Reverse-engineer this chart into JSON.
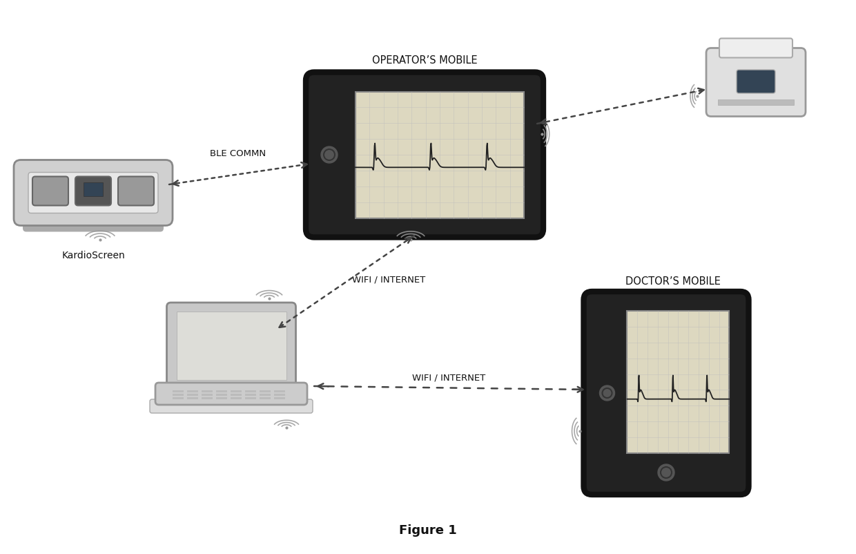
{
  "title": "Figure 1",
  "background_color": "#ffffff",
  "elements": {
    "operator_mobile_label": "OPERATOR’S MOBILE",
    "doctor_mobile_label": "DOCTOR’S MOBILE",
    "kardioscreen_label": "KardioScreen",
    "ble_commn_label": "BLE COMMN",
    "wifi_internet_label1": "WIFI / INTERNET",
    "wifi_internet_label2": "WIFI / INTERNET"
  },
  "colors": {
    "device_outline": "#333333",
    "arrow": "#444444",
    "dashed": "#555555",
    "ecg_line": "#222222",
    "grid_color": "#bbbbbb",
    "screen_bg": "#ddd8c0",
    "phone_body": "#1a1a1a",
    "phone_border": "#111111",
    "text_color": "#111111",
    "laptop_color": "#aaaaaa",
    "device_color": "#cccccc",
    "wifi_color": "#999999"
  }
}
